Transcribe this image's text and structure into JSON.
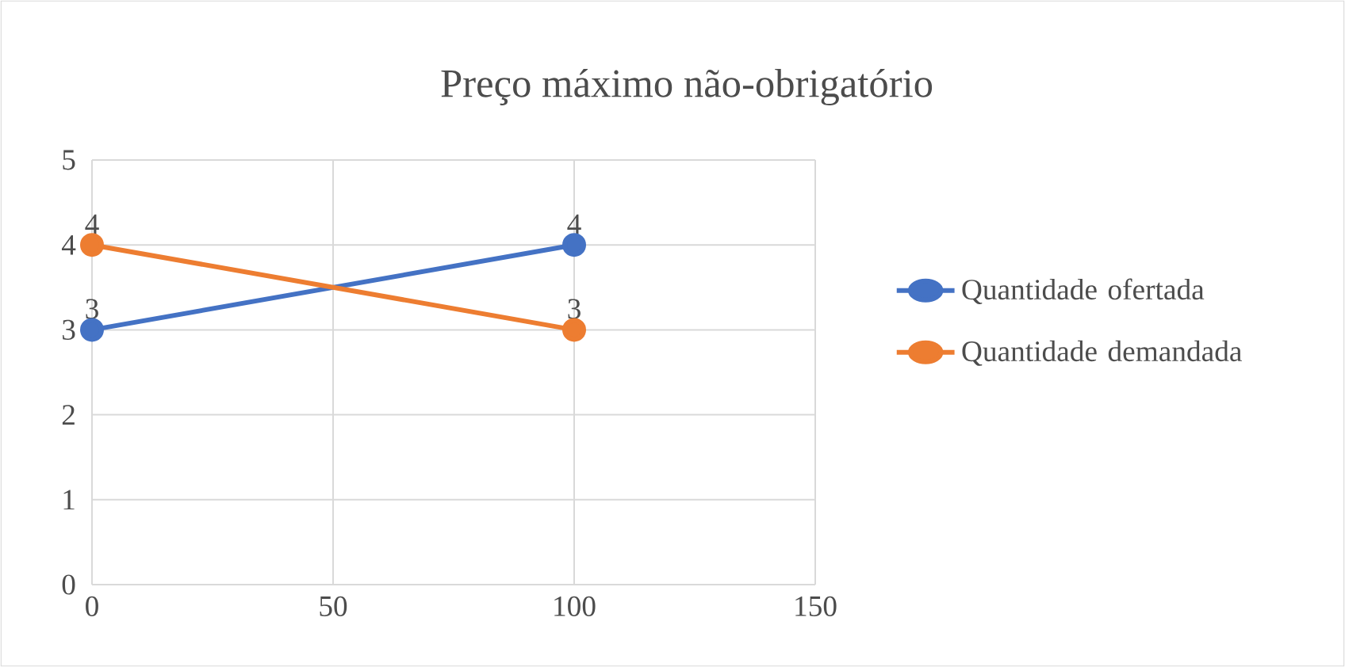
{
  "chart_data": {
    "type": "line",
    "title": "Preço máximo não-obrigatório",
    "x": [
      0,
      100
    ],
    "series": [
      {
        "name": "Quantidade ofertada",
        "color": "#4472c4",
        "values": [
          3,
          4
        ]
      },
      {
        "name": "Quantidade demandada",
        "color": "#ed7d31",
        "values": [
          4,
          3
        ]
      }
    ],
    "xlim": [
      0,
      150
    ],
    "ylim": [
      0,
      5
    ],
    "xticks": [
      0,
      50,
      100,
      150
    ],
    "yticks": [
      0,
      1,
      2,
      3,
      4,
      5
    ],
    "grid": true,
    "legend": "right",
    "marker": "circle",
    "line_style": "solid",
    "data_labels": true
  }
}
